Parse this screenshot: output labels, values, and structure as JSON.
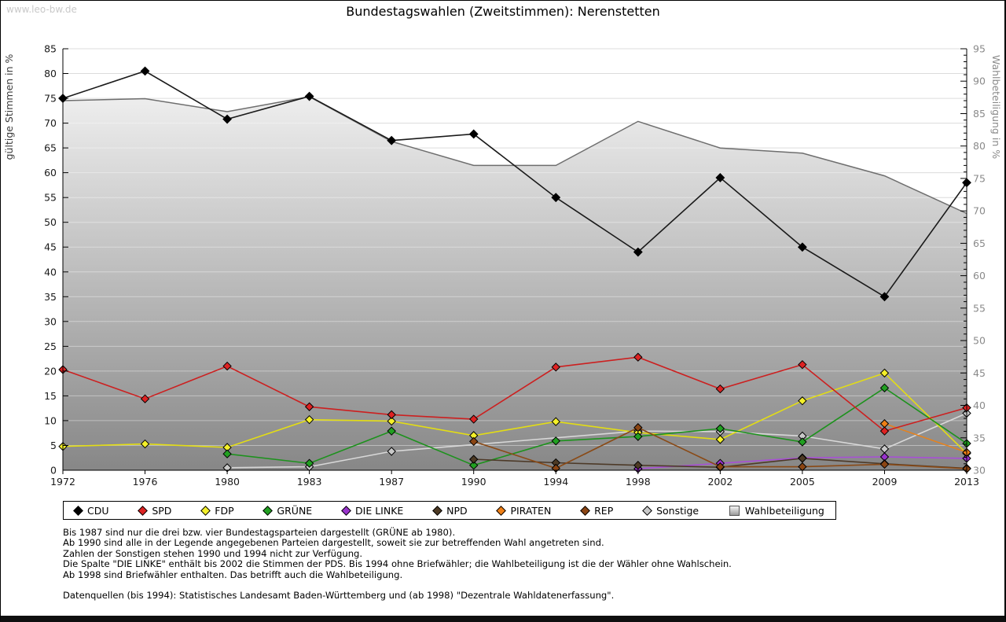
{
  "watermark": "www.leo-bw.de",
  "title": "Bundestagswahlen (Zweitstimmen): Nerenstetten",
  "chart_data": {
    "type": "line",
    "title": "Bundestagswahlen (Zweitstimmen): Nerenstetten",
    "x": [
      1972,
      1976,
      1980,
      1983,
      1987,
      1990,
      1994,
      1998,
      2002,
      2005,
      2009,
      2013
    ],
    "ylabel_left": "gültige Stimmen in %",
    "ylabel_right": "Wahlbeteiligung in %",
    "ylim_left": [
      0,
      85
    ],
    "ylim_right": [
      30,
      95
    ],
    "tick_step": 5,
    "grid": true,
    "legend_position": "bottom",
    "series": [
      {
        "name": "CDU",
        "axis": "left",
        "marker": "diamond",
        "color": "#000000",
        "line": "#1a1a1a",
        "values": [
          75.0,
          80.5,
          70.8,
          75.4,
          66.5,
          67.8,
          55.0,
          44.0,
          59.0,
          45.0,
          35.0,
          58.0
        ]
      },
      {
        "name": "SPD",
        "axis": "left",
        "marker": "diamond",
        "color": "#dd2222",
        "line": "#cc2020",
        "values": [
          20.3,
          14.4,
          21.0,
          12.8,
          11.2,
          10.3,
          20.8,
          22.8,
          16.4,
          21.3,
          7.9,
          12.6
        ]
      },
      {
        "name": "FDP",
        "axis": "left",
        "marker": "diamond",
        "color": "#f4f02a",
        "line": "#e3dd14",
        "values": [
          4.8,
          5.3,
          4.6,
          10.2,
          9.9,
          7.0,
          9.8,
          7.6,
          6.2,
          14.0,
          19.6,
          3.4
        ]
      },
      {
        "name": "GRÜNE",
        "axis": "left",
        "marker": "diamond",
        "color": "#21a021",
        "line": "#1d921d",
        "values": [
          null,
          null,
          3.3,
          1.4,
          7.9,
          1.0,
          5.9,
          6.8,
          8.4,
          5.7,
          16.6,
          5.4
        ]
      },
      {
        "name": "DIE LINKE",
        "axis": "left",
        "marker": "diamond",
        "color": "#9933cc",
        "line": "#a84fd6",
        "values": [
          null,
          null,
          null,
          null,
          null,
          null,
          null,
          0.3,
          1.4,
          2.5,
          2.7,
          2.4
        ]
      },
      {
        "name": "NPD",
        "axis": "left",
        "marker": "diamond",
        "color": "#4d3a24",
        "line": "#4d3a28",
        "values": [
          null,
          null,
          null,
          null,
          null,
          2.2,
          1.5,
          1.0,
          0.6,
          2.4,
          1.3,
          0.4
        ]
      },
      {
        "name": "PIRATEN",
        "axis": "left",
        "marker": "diamond",
        "color": "#ef7f16",
        "line": "#e5821e",
        "values": [
          null,
          null,
          null,
          null,
          null,
          null,
          null,
          null,
          null,
          null,
          9.4,
          3.6
        ]
      },
      {
        "name": "REP",
        "axis": "left",
        "marker": "diamond",
        "color": "#8b4513",
        "line": "#8a4a16",
        "values": [
          null,
          null,
          null,
          null,
          null,
          5.8,
          0.4,
          8.6,
          0.7,
          0.7,
          1.2,
          0.3
        ]
      },
      {
        "name": "Sonstige",
        "axis": "left",
        "marker": "diamond",
        "color": "#c9c9c9",
        "line": "#d8d8d8",
        "values": [
          null,
          null,
          0.5,
          0.7,
          3.8,
          null,
          null,
          7.9,
          7.8,
          6.9,
          4.3,
          11.5
        ]
      },
      {
        "name": "Wahlbeteiligung",
        "axis": "right",
        "marker": "area",
        "color": "#bdbdbd",
        "line": "#6e6e6e",
        "values": [
          87.0,
          87.3,
          85.3,
          87.6,
          80.7,
          77.0,
          77.0,
          83.8,
          79.7,
          78.9,
          75.4,
          69.6
        ]
      }
    ]
  },
  "footnotes": [
    "Bis 1987 sind nur die drei bzw. vier Bundestagsparteien dargestellt (GRÜNE ab 1980).",
    "Ab 1990 sind alle in der Legende angegebenen Parteien dargestellt, soweit sie zur betreffenden Wahl angetreten sind.",
    "Zahlen der Sonstigen stehen 1990 und 1994 nicht zur Verfügung.",
    "Die Spalte \"DIE LINKE\" enthält bis 2002 die Stimmen der PDS. Bis 1994 ohne Briefwähler; die Wahlbeteiligung ist die der Wähler ohne Wahlschein.",
    "Ab 1998 sind Briefwähler enthalten. Das betrifft auch die Wahlbeteiligung."
  ],
  "source_line": "Datenquellen (bis 1994): Statistisches Landesamt Baden-Württemberg und (ab 1998) \"Dezentrale Wahldatenerfassung\"."
}
